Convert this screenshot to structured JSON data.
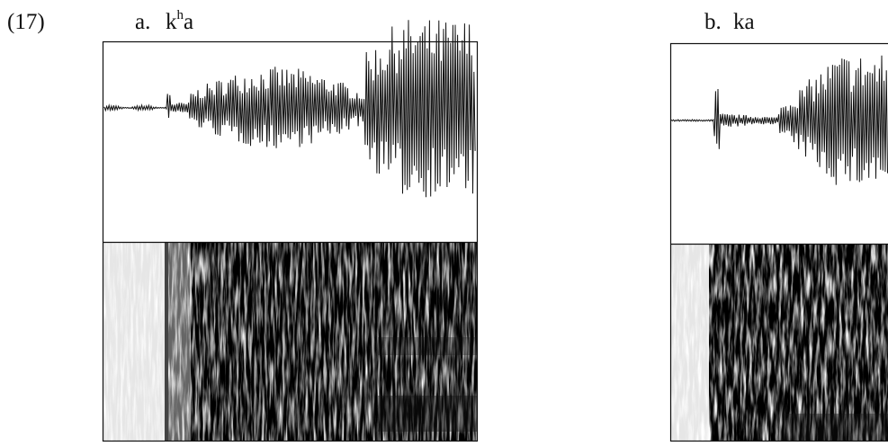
{
  "example_number": "(17)",
  "panels": [
    {
      "letter": "a.",
      "label_parts": [
        "k",
        "h",
        "a"
      ]
    },
    {
      "letter": "b.",
      "label_parts": [
        "ka"
      ]
    }
  ]
}
